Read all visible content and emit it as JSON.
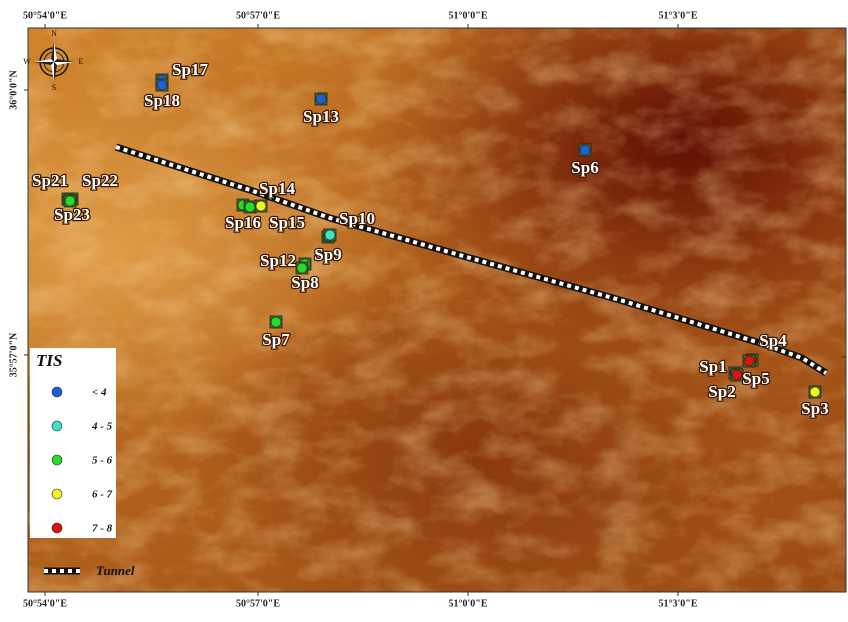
{
  "map": {
    "top_labels": [
      "50°54'0\"E",
      "50°57'0\"E",
      "51°0'0\"E",
      "51°3'0\"E"
    ],
    "bottom_labels": [
      "50°54'0\"E",
      "50°57'0\"E",
      "51°0'0\"E",
      "51°3'0\"E"
    ],
    "left_labels": [
      "36°0'0\"N",
      "35°57'0\"N"
    ],
    "compass": [
      "N",
      "S",
      "W",
      "E"
    ],
    "legend": {
      "title": "TIS",
      "items": [
        {
          "label": "< 4",
          "color": "#1f5fd6",
          "points": [
            "Sp17",
            "Sp18",
            "Sp13",
            "Sp6"
          ]
        },
        {
          "label": "4 - 5",
          "color": "#3fe3c4",
          "points": [
            "Sp9",
            "Sp10"
          ]
        },
        {
          "label": "5 - 6",
          "color": "#25dd25",
          "points": [
            "Sp21",
            "Sp22",
            "Sp23",
            "Sp16",
            "Sp14",
            "Sp12",
            "Sp8",
            "Sp7"
          ]
        },
        {
          "label": "6 - 7",
          "color": "#f5f51e",
          "points": [
            "Sp15",
            "Sp3"
          ]
        },
        {
          "label": "7 - 8",
          "color": "#e01010",
          "points": [
            "Sp1",
            "Sp2",
            "Sp4",
            "Sp5"
          ]
        }
      ],
      "tunnel": "Tunnel"
    }
  }
}
